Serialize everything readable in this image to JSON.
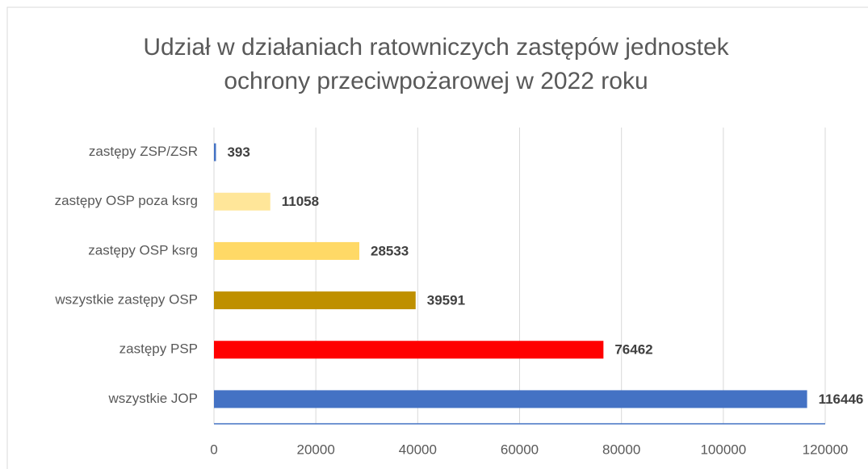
{
  "chart_data": {
    "type": "barh",
    "title": [
      "Udział w działaniach ratowniczych zastępów jednostek",
      "ochrony przeciwpożarowej w 2022 roku"
    ],
    "categories": [
      "zastępy ZSP/ZSR",
      "zastępy OSP poza ksrg",
      "zastępy OSP ksrg",
      "wszystkie zastępy OSP",
      "zastępy PSP",
      "wszystkie JOP"
    ],
    "values": [
      393,
      11058,
      28533,
      39591,
      76462,
      116446
    ],
    "colors": [
      "#4472c4",
      "#ffe699",
      "#ffd966",
      "#bf9000",
      "#ff0000",
      "#4472c4"
    ],
    "xlim": [
      0,
      120000
    ],
    "xticks": [
      0,
      20000,
      40000,
      60000,
      80000,
      100000,
      120000
    ],
    "grid": true
  }
}
